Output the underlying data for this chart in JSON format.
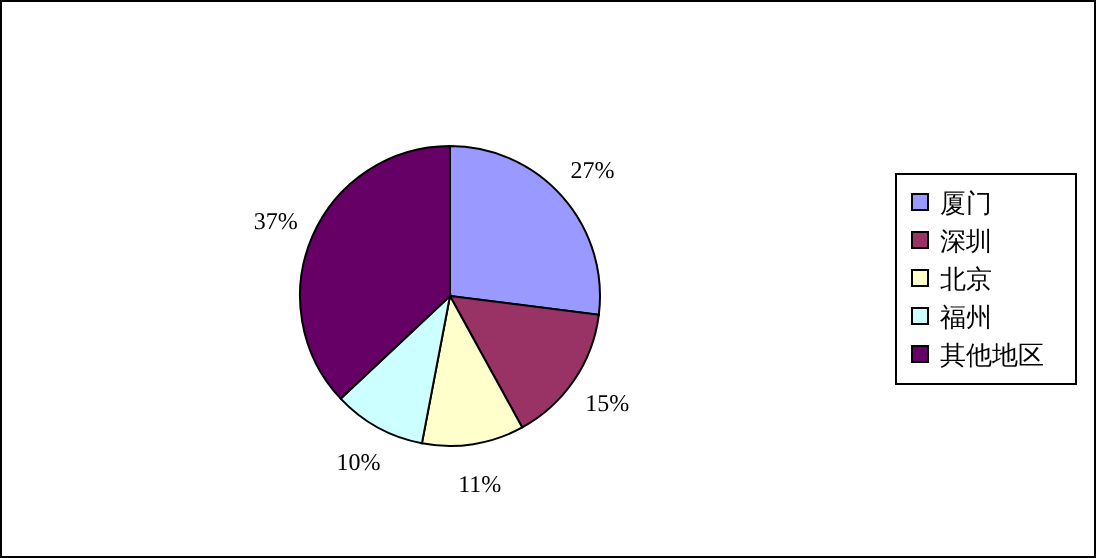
{
  "chart_data": {
    "type": "pie",
    "categories": [
      "厦门",
      "深圳",
      "北京",
      "福州",
      "其他地区"
    ],
    "values": [
      27,
      15,
      11,
      10,
      37
    ],
    "value_labels": [
      "27%",
      "15%",
      "11%",
      "10%",
      "37%"
    ],
    "colors": [
      "#9999ff",
      "#993366",
      "#ffffcc",
      "#ccffff",
      "#660066"
    ],
    "legend": "right"
  }
}
